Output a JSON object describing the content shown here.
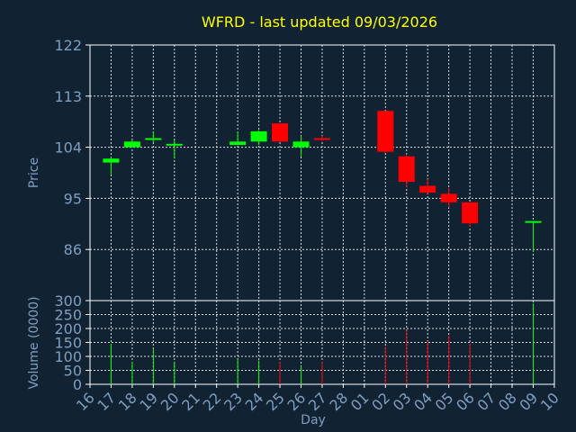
{
  "chart_data": {
    "type": "candlestick",
    "title": "WFRD - last updated 09/03/2026",
    "xlabel": "Day",
    "x_tick_labels": [
      "16",
      "17",
      "18",
      "19",
      "20",
      "21",
      "22",
      "23",
      "24",
      "25",
      "26",
      "27",
      "28",
      "01",
      "02",
      "03",
      "04",
      "05",
      "06",
      "07",
      "08",
      "09",
      "10"
    ],
    "price_panel": {
      "ylabel": "Price",
      "ylim": [
        77,
        122
      ],
      "yticks": [
        122,
        113,
        104,
        95,
        86
      ],
      "grid": true
    },
    "volume_panel": {
      "ylabel": "Volume (0000)",
      "ylim": [
        0,
        300
      ],
      "yticks": [
        300,
        250,
        200,
        150,
        100,
        50,
        0
      ],
      "grid": true
    },
    "candles": [
      {
        "x": 1,
        "open": 101.3,
        "high": 102.3,
        "low": 99.2,
        "close": 102.0,
        "volume": 145
      },
      {
        "x": 2,
        "open": 104.0,
        "high": 105.3,
        "low": 104.0,
        "close": 105.0,
        "volume": 80
      },
      {
        "x": 3,
        "open": 105.3,
        "high": 106.8,
        "low": 104.9,
        "close": 105.6,
        "volume": 130
      },
      {
        "x": 4,
        "open": 104.4,
        "high": 105.3,
        "low": 102.0,
        "close": 104.6,
        "volume": 80
      },
      {
        "x": 7,
        "open": 104.4,
        "high": 106.8,
        "low": 104.4,
        "close": 105.0,
        "volume": 90
      },
      {
        "x": 8,
        "open": 105.0,
        "high": 107.0,
        "low": 104.4,
        "close": 106.8,
        "volume": 85
      },
      {
        "x": 9,
        "open": 108.2,
        "high": 108.2,
        "low": 104.9,
        "close": 105.0,
        "volume": 80
      },
      {
        "x": 10,
        "open": 104.0,
        "high": 106.0,
        "low": 102.4,
        "close": 105.0,
        "volume": 65
      },
      {
        "x": 11,
        "open": 105.6,
        "high": 106.0,
        "low": 105.0,
        "close": 105.3,
        "volume": 80
      },
      {
        "x": 14,
        "open": 110.4,
        "high": 110.4,
        "low": 103.0,
        "close": 103.2,
        "volume": 135
      },
      {
        "x": 15,
        "open": 102.4,
        "high": 102.8,
        "low": 96.9,
        "close": 97.9,
        "volume": 195
      },
      {
        "x": 16,
        "open": 97.2,
        "high": 98.4,
        "low": 95.8,
        "close": 96.0,
        "volume": 155
      },
      {
        "x": 17,
        "open": 95.8,
        "high": 96.8,
        "low": 93.4,
        "close": 94.3,
        "volume": 175
      },
      {
        "x": 18,
        "open": 94.3,
        "high": 94.3,
        "low": 90.0,
        "close": 90.6,
        "volume": 145
      },
      {
        "x": 21,
        "open": 90.8,
        "high": 91.0,
        "low": 85.6,
        "close": 91.0,
        "volume": 290
      }
    ],
    "colors": {
      "background": "#112233",
      "up": "#00ff00",
      "down": "#ff0000",
      "title": "#ffff00",
      "axis_text": "#7f9fbf",
      "grid": "#ffffff"
    }
  }
}
